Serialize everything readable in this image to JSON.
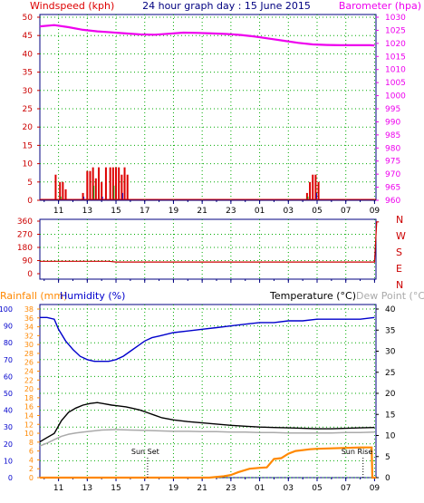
{
  "colors": {
    "wind": "#dd0000",
    "gust": "#00aa00",
    "gust2": "#0000cc",
    "baro": "#ee00ee",
    "dir": "#cc0000",
    "rain": "#ff8800",
    "hum": "#0000cc",
    "temp": "#000000",
    "dew": "#aaaaaa",
    "axis_green": "#008080",
    "title_blue": "#000080",
    "grid": "#00aa00"
  },
  "chart_data": [
    {
      "type": "bar",
      "panel": "wind-baro",
      "title": "24 hour graph day : 15 June 2015",
      "left_label": "Windspeed (kph)",
      "right_label": "Barometer (hpa)",
      "x_ticks": [
        "11",
        "13",
        "15",
        "17",
        "19",
        "21",
        "23",
        "01",
        "03",
        "05",
        "07",
        "09"
      ],
      "wind_ylim": [
        0,
        50
      ],
      "wind_ticks": [
        "0",
        "5",
        "10",
        "15",
        "20",
        "25",
        "30",
        "35",
        "40",
        "45",
        "50"
      ],
      "baro_ylim": [
        960,
        1030
      ],
      "baro_ticks": [
        "960",
        "965",
        "970",
        "975",
        "980",
        "985",
        "990",
        "995",
        "1000",
        "1005",
        "1010",
        "1015",
        "1020",
        "1025",
        "1030"
      ],
      "wind_bars_x": [
        10.8,
        11.1,
        11.3,
        11.5,
        12.7,
        13.0,
        13.2,
        13.4,
        13.6,
        13.8,
        14.0,
        14.3,
        14.6,
        14.8,
        15.0,
        15.2,
        15.4,
        15.6,
        15.8,
        4.3,
        4.5,
        4.7,
        4.9,
        5.1
      ],
      "wind_bars_v": [
        7,
        5,
        5,
        3,
        2,
        8,
        8,
        9,
        6,
        9,
        5,
        9,
        9,
        9,
        9,
        9,
        7,
        9,
        7,
        2,
        5,
        7,
        7,
        5
      ],
      "baro_x": [
        9.7,
        10.7,
        11.7,
        12.7,
        13.7,
        14.7,
        15.7,
        16.7,
        17.7,
        18.7,
        19.7,
        20.7,
        21.7,
        22.7,
        23.7,
        24.7,
        25.7,
        26.7,
        27.7,
        28.7,
        29.7,
        30.7,
        31.7,
        32.7,
        33.0
      ],
      "baro_y": [
        1026.5,
        1027,
        1026.2,
        1025.2,
        1024.6,
        1024.2,
        1023.8,
        1023.4,
        1023.3,
        1023.7,
        1024.1,
        1024.0,
        1023.8,
        1023.6,
        1023.2,
        1022.6,
        1021.8,
        1021.0,
        1020.2,
        1019.6,
        1019.4,
        1019.3,
        1019.3,
        1019.3,
        1019.2
      ]
    },
    {
      "type": "line",
      "panel": "wind-direction",
      "y_ticks": [
        "0",
        "90",
        "180",
        "270",
        "360"
      ],
      "ylim": [
        0,
        360
      ],
      "compass": [
        "N",
        "W",
        "S",
        "E",
        "N"
      ],
      "dir_x": [
        9.7,
        12.0,
        14.5,
        15.0,
        20.0,
        25.0,
        30.0,
        33.0,
        33.15,
        33.3
      ],
      "dir_y": [
        85,
        85,
        85,
        80,
        80,
        80,
        80,
        80,
        355,
        355
      ]
    },
    {
      "type": "line",
      "panel": "rain-hum-temp",
      "rain_label": "Rainfall (mm)",
      "hum_label": "Humidity (%)",
      "temp_label": "Temperature (°C)",
      "dew_label": "Dew Point (°C)",
      "sunset_label": "Sun Set",
      "sunrise_label": "Sun Rise",
      "hum_ticks": [
        "0",
        "10",
        "20",
        "30",
        "40",
        "50",
        "60",
        "70",
        "80",
        "90",
        "100"
      ],
      "rain_ticks": [
        "0",
        "2",
        "4",
        "6",
        "8",
        "10",
        "12",
        "14",
        "16",
        "18",
        "20",
        "22",
        "24",
        "26",
        "28",
        "30",
        "32",
        "34",
        "36",
        "38"
      ],
      "temp_ticks": [
        "0",
        "5",
        "10",
        "15",
        "20",
        "25",
        "30",
        "35",
        "40"
      ],
      "hum_ylim": [
        0,
        100
      ],
      "temp_ylim": [
        0,
        40
      ],
      "rain_ylim": [
        0,
        38
      ],
      "hum_x": [
        9.7,
        10.2,
        10.7,
        11.0,
        11.5,
        12.0,
        12.5,
        13.0,
        13.5,
        14.0,
        14.5,
        15.0,
        15.5,
        16.0,
        16.5,
        17.0,
        17.5,
        18.0,
        19.0,
        20.0,
        21.0,
        22.0,
        23.0,
        24.0,
        25.0,
        26.0,
        27.0,
        28.0,
        29.0,
        30.0,
        31.0,
        32.0,
        33.0
      ],
      "hum_y": [
        95,
        95,
        94,
        88,
        81,
        76,
        72,
        70,
        69,
        69,
        69,
        70,
        72,
        75,
        78,
        81,
        83,
        84,
        86,
        87,
        88,
        89,
        90,
        91,
        92,
        92,
        93,
        93,
        94,
        94,
        94,
        94,
        95
      ],
      "temp_x": [
        9.7,
        10.2,
        10.7,
        11.2,
        11.7,
        12.2,
        12.7,
        13.2,
        13.7,
        14.2,
        14.7,
        15.2,
        15.7,
        16.2,
        16.7,
        17.2,
        17.7,
        18.2,
        19.0,
        20.0,
        21.0,
        22.0,
        23.0,
        24.0,
        25.0,
        26.0,
        27.0,
        28.0,
        29.0,
        30.0,
        31.0,
        32.0,
        33.0
      ],
      "temp_y": [
        8.5,
        9.5,
        10.5,
        13.5,
        15.5,
        16.5,
        17.2,
        17.6,
        17.8,
        17.5,
        17.2,
        17.0,
        16.8,
        16.4,
        16.0,
        15.4,
        14.8,
        14.2,
        13.7,
        13.3,
        13.0,
        12.7,
        12.4,
        12.2,
        12.0,
        11.9,
        11.8,
        11.7,
        11.6,
        11.6,
        11.7,
        11.8,
        11.9
      ],
      "dew_x": [
        9.7,
        10.2,
        10.7,
        11.2,
        11.7,
        12.2,
        12.7,
        13.2,
        14.0,
        15.0,
        16.0,
        17.0,
        18.0,
        19.0,
        20.0,
        21.0,
        22.0,
        23.0,
        24.0,
        25.0,
        26.0,
        27.0,
        28.0,
        29.0,
        30.0,
        31.0,
        32.0,
        33.0
      ],
      "dew_y": [
        7.5,
        8.2,
        9.0,
        9.8,
        10.3,
        10.6,
        10.8,
        11.0,
        11.3,
        11.4,
        11.3,
        11.2,
        11.1,
        11.0,
        11.0,
        10.9,
        10.9,
        10.8,
        10.8,
        10.7,
        10.7,
        10.6,
        10.6,
        10.6,
        10.6,
        10.7,
        10.7,
        10.8
      ],
      "rain_x": [
        9.7,
        21.5,
        22.5,
        23.0,
        23.5,
        24.3,
        25.0,
        25.5,
        26.0,
        26.5,
        27.0,
        27.5,
        28.0,
        28.5,
        29.0,
        30.0,
        31.0,
        32.0,
        32.8,
        32.85,
        33.1
      ],
      "rain_y": [
        0,
        0,
        0.3,
        0.6,
        1.2,
        2.0,
        2.2,
        2.3,
        4.2,
        4.4,
        5.4,
        6.0,
        6.2,
        6.4,
        6.5,
        6.6,
        6.7,
        6.8,
        6.8,
        0,
        0
      ]
    }
  ]
}
